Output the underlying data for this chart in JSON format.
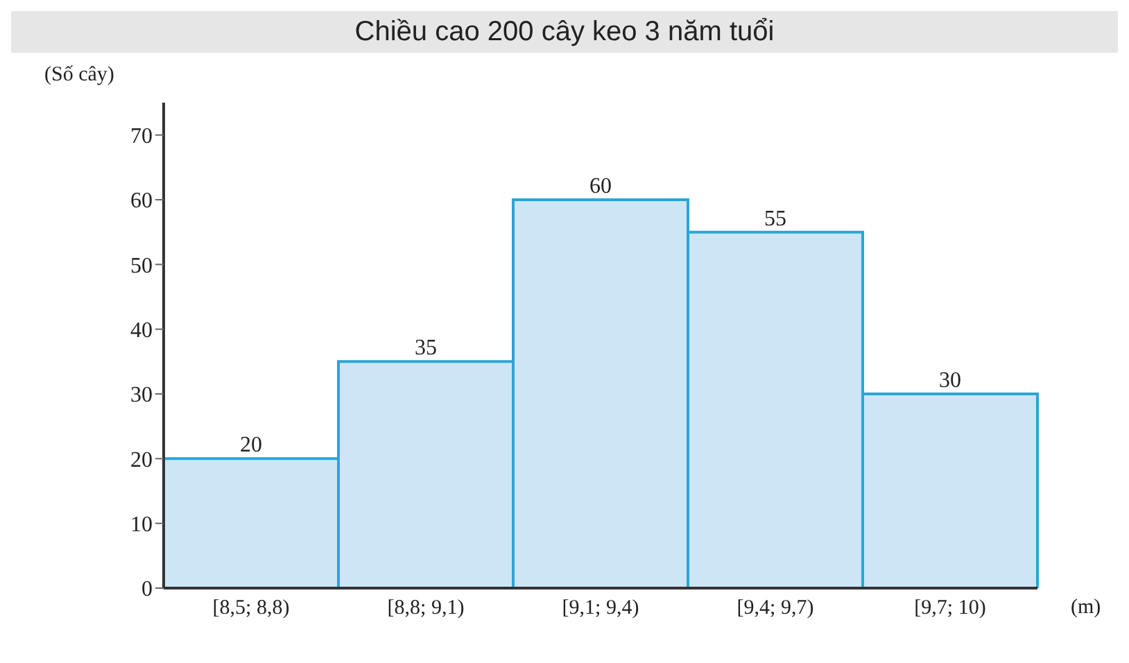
{
  "chart_data": {
    "type": "bar",
    "title": "Chiều cao 200 cây keo 3 năm tuổi",
    "ylabel": "(Số cây)",
    "xlabel": "(m)",
    "categories": [
      "[8,5; 8,8)",
      "[8,8; 9,1)",
      "[9,1; 9,4)",
      "[9,4; 9,7)",
      "[9,7; 10)"
    ],
    "values": [
      20,
      35,
      60,
      55,
      30
    ],
    "color": "#cde6f5",
    "ylim": [
      0,
      75
    ],
    "yticks": [
      0,
      10,
      20,
      30,
      40,
      50,
      60,
      70
    ],
    "grid": false,
    "data_labels": true,
    "legend": false
  }
}
